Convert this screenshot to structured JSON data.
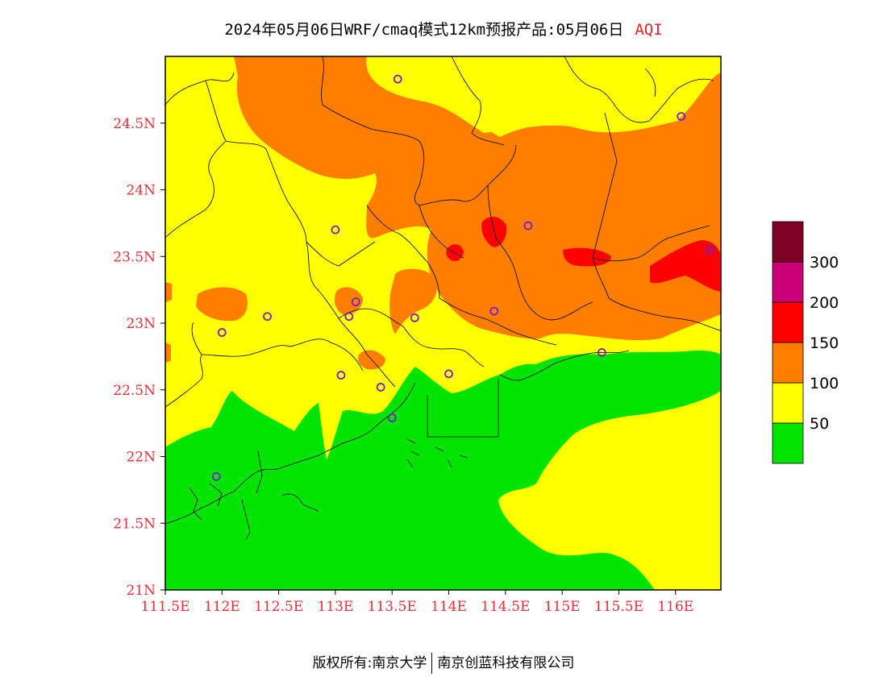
{
  "title": {
    "main": "2024年05月06日WRF/cmaq模式12km预报产品:05月06日",
    "variable": "AQI"
  },
  "map": {
    "lon_range": [
      111.5,
      116.4
    ],
    "lat_range": [
      21.0,
      25.0
    ],
    "x_ticks": [
      {
        "lon": 111.5,
        "label": "111.5E"
      },
      {
        "lon": 112.0,
        "label": "112E"
      },
      {
        "lon": 112.5,
        "label": "112.5E"
      },
      {
        "lon": 113.0,
        "label": "113E"
      },
      {
        "lon": 113.5,
        "label": "113.5E"
      },
      {
        "lon": 114.0,
        "label": "114E"
      },
      {
        "lon": 114.5,
        "label": "114.5E"
      },
      {
        "lon": 115.0,
        "label": "115E"
      },
      {
        "lon": 115.5,
        "label": "115.5E"
      },
      {
        "lon": 116.0,
        "label": "116E"
      }
    ],
    "y_ticks": [
      {
        "lat": 21.0,
        "label": "21N"
      },
      {
        "lat": 21.5,
        "label": "21.5N"
      },
      {
        "lat": 22.0,
        "label": "22N"
      },
      {
        "lat": 22.5,
        "label": "22.5N"
      },
      {
        "lat": 23.0,
        "label": "23N"
      },
      {
        "lat": 23.5,
        "label": "23.5N"
      },
      {
        "lat": 24.0,
        "label": "24N"
      },
      {
        "lat": 24.5,
        "label": "24.5N"
      }
    ],
    "stations": [
      {
        "lon": 113.55,
        "lat": 24.83
      },
      {
        "lon": 116.05,
        "lat": 24.55
      },
      {
        "lon": 113.0,
        "lat": 23.7
      },
      {
        "lon": 114.7,
        "lat": 23.73
      },
      {
        "lon": 116.3,
        "lat": 23.55
      },
      {
        "lon": 113.18,
        "lat": 23.16
      },
      {
        "lon": 112.4,
        "lat": 23.05
      },
      {
        "lon": 113.12,
        "lat": 23.05
      },
      {
        "lon": 113.7,
        "lat": 23.04
      },
      {
        "lon": 114.4,
        "lat": 23.09
      },
      {
        "lon": 112.0,
        "lat": 22.93
      },
      {
        "lon": 115.35,
        "lat": 22.78
      },
      {
        "lon": 113.05,
        "lat": 22.61
      },
      {
        "lon": 113.4,
        "lat": 22.52
      },
      {
        "lon": 114.0,
        "lat": 22.62
      },
      {
        "lon": 113.5,
        "lat": 22.29
      },
      {
        "lon": 111.95,
        "lat": 21.85
      }
    ]
  },
  "legend": {
    "colors": [
      "#00e400",
      "#ffff00",
      "#ff7e00",
      "#ff0000",
      "#cc0077",
      "#7e0023"
    ],
    "labels": [
      "50",
      "100",
      "150",
      "200",
      "300"
    ]
  },
  "footer": {
    "left": "版权所有:南京大学",
    "right": "南京创蓝科技有限公司"
  }
}
